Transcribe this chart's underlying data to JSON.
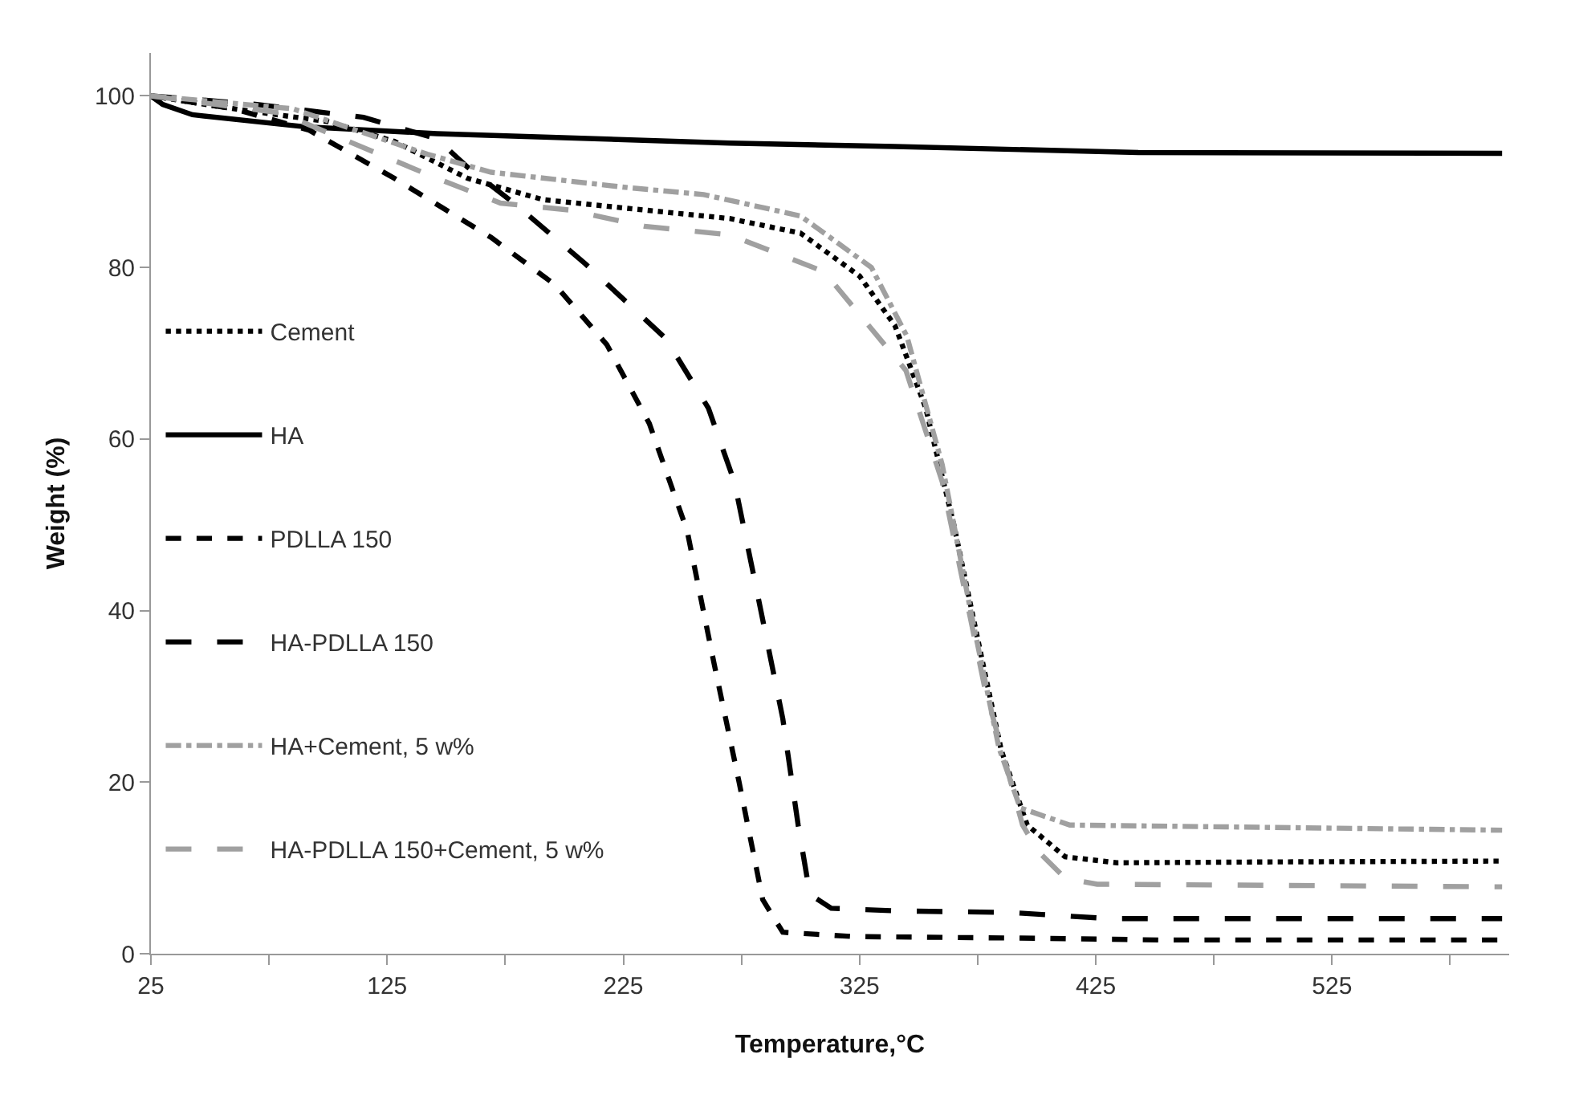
{
  "chart_data": {
    "type": "line",
    "xlabel": "Temperature,°C",
    "ylabel": "Weight (%)",
    "xlim": [
      25,
      600
    ],
    "ylim": [
      0,
      105
    ],
    "xticks": [
      25,
      {
        "value": 75,
        "label": null
      },
      125,
      {
        "value": 175,
        "label": null
      },
      225,
      {
        "value": 275,
        "label": null
      },
      325,
      {
        "value": 375,
        "label": null
      },
      425,
      {
        "value": 475,
        "label": null
      },
      525,
      {
        "value": 575,
        "label": null
      }
    ],
    "yticks": [
      0,
      20,
      40,
      60,
      80,
      100
    ],
    "grid": false,
    "legend": "left",
    "marker": "none",
    "series": [
      {
        "name": "Cement",
        "color": "#000000",
        "line_style": "dotted",
        "x": [
          25,
          60,
          100,
          128,
          159,
          191,
          230,
          270,
          300,
          325,
          340,
          353,
          365,
          374,
          385,
          396,
          412,
          434,
          500,
          597
        ],
        "values": [
          100,
          98.5,
          97,
          94.7,
          90.4,
          87.9,
          86.8,
          85.7,
          84,
          79,
          73.2,
          63.6,
          49.9,
          38,
          23.7,
          15,
          11.3,
          10.6,
          10.7,
          10.8
        ]
      },
      {
        "name": "HA",
        "color": "#000000",
        "line_style": "solid",
        "x": [
          25,
          30,
          42.6,
          90,
          146,
          270,
          340,
          443,
          597
        ],
        "values": [
          100,
          99,
          97.8,
          96.4,
          95.6,
          94.5,
          94.1,
          93.4,
          93.3
        ]
      },
      {
        "name": "PDLLA 150",
        "color": "#000000",
        "line_style": "dashed",
        "x": [
          25,
          60,
          92,
          128,
          169,
          196,
          218,
          236,
          252,
          263.5,
          274,
          284,
          292.5,
          322,
          400,
          452.7,
          597
        ],
        "values": [
          100,
          98.5,
          96,
          90.4,
          83.5,
          78,
          71,
          61.8,
          49.3,
          33.7,
          20,
          6.3,
          2.5,
          2,
          1.8,
          1.6,
          1.6
        ]
      },
      {
        "name": "HA-PDLLA 150",
        "color": "#000000",
        "line_style": "longdash",
        "x": [
          25,
          70,
          115,
          146,
          159,
          180,
          209,
          243,
          261,
          272,
          281,
          292.5,
          299,
          304,
          313,
          340,
          389,
          430,
          597
        ],
        "values": [
          100,
          99,
          97.5,
          95,
          91.7,
          87.2,
          80.4,
          71.7,
          63.6,
          55,
          43,
          27.4,
          15,
          6.9,
          5.3,
          5,
          4.8,
          4.1,
          4.1
        ]
      },
      {
        "name": "HA+Cement, 5 w%",
        "color": "#a0a0a0",
        "line_style": "dashdot",
        "x": [
          25,
          85,
          142,
          169,
          227,
          259,
          300,
          330,
          345,
          360,
          372,
          384,
          393,
          414,
          597
        ],
        "values": [
          100,
          98.5,
          93.2,
          91.1,
          89.3,
          88.5,
          86,
          80,
          72,
          57,
          40,
          24,
          17,
          15,
          14.4
        ]
      },
      {
        "name": "HA-PDLLA 150+Cement, 5 w%",
        "color": "#a0a0a0",
        "line_style": "longdash",
        "x": [
          25,
          80,
          146,
          173,
          202,
          234,
          270,
          310,
          344.6,
          360,
          378,
          394,
          400.7,
          412,
          425.6,
          597
        ],
        "values": [
          100,
          98,
          90.4,
          87.5,
          86.7,
          84.8,
          83.8,
          79.5,
          68,
          55,
          31,
          15,
          11.9,
          8.8,
          8.1,
          7.8
        ]
      }
    ]
  }
}
